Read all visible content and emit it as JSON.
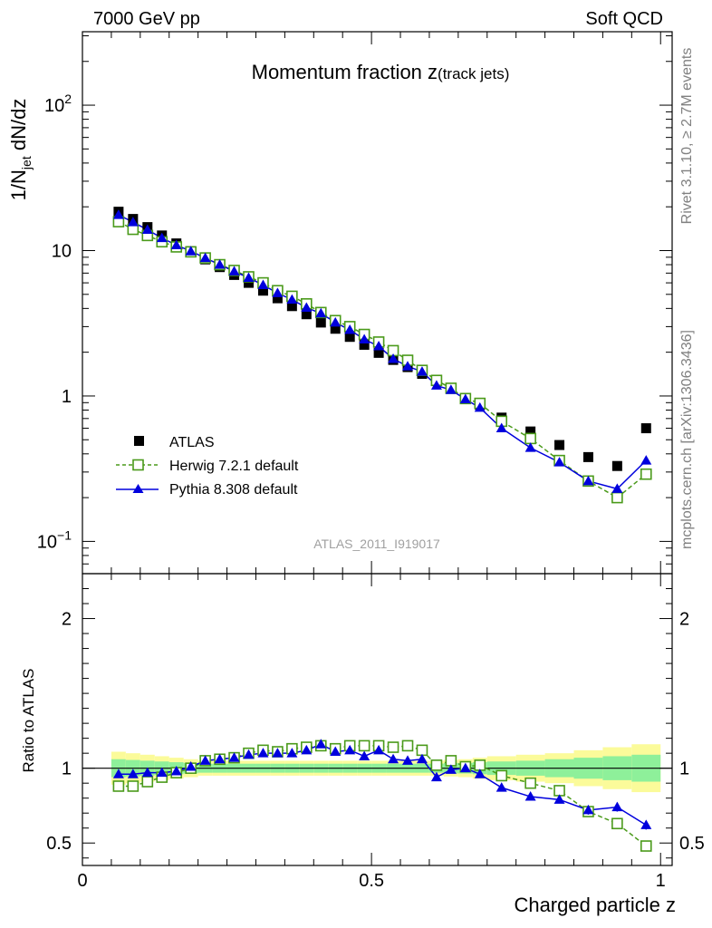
{
  "header": {
    "left": "7000 GeV pp",
    "right": "Soft QCD"
  },
  "side": {
    "upper": "Rivet 3.1.10, ≥ 2.7M events",
    "lower": "mcplots.cern.ch [arXiv:1306.3436]"
  },
  "chart_data": [
    {
      "type": "scatter",
      "panel": "main",
      "title": "Momentum fraction z",
      "title_sub": "(track jets)",
      "ylabel": {
        "prefix": "1/N",
        "sub": "jet",
        "suffix": " dN/dz"
      },
      "yscale": "log",
      "ylim": [
        0.06,
        320
      ],
      "xlim": [
        0,
        1.02
      ],
      "yticks": [
        {
          "value": 0.1,
          "base": "10",
          "exp": "−1"
        },
        {
          "value": 1,
          "label": "1"
        },
        {
          "value": 10,
          "label": "10"
        },
        {
          "value": 100,
          "base": "10",
          "exp": "2"
        }
      ],
      "watermark": "ATLAS_2011_I919017",
      "legend_position": "lower-left",
      "series": [
        {
          "name": "ATLAS",
          "color": "#000000",
          "marker": "square-filled",
          "x": [
            0.0625,
            0.0875,
            0.1125,
            0.1375,
            0.1625,
            0.1875,
            0.2125,
            0.2375,
            0.2625,
            0.2875,
            0.3125,
            0.3375,
            0.3625,
            0.3875,
            0.4125,
            0.4375,
            0.4625,
            0.4875,
            0.5125,
            0.5375,
            0.5625,
            0.5875,
            0.6125,
            0.6375,
            0.6625,
            0.6875,
            0.725,
            0.775,
            0.825,
            0.875,
            0.925,
            0.975
          ],
          "y": [
            18.5,
            16.5,
            14.5,
            12.7,
            11.2,
            9.9,
            8.7,
            7.7,
            6.8,
            6.0,
            5.3,
            4.7,
            4.15,
            3.65,
            3.2,
            2.9,
            2.55,
            2.25,
            1.98,
            1.77,
            1.58,
            1.42,
            1.27,
            1.12,
            0.96,
            0.87,
            0.71,
            0.57,
            0.46,
            0.38,
            0.33,
            0.6
          ]
        },
        {
          "name": "Herwig 7.2.1 default",
          "color": "#4a9a1a",
          "marker": "square-open",
          "line": "dashed",
          "x": [
            0.0625,
            0.0875,
            0.1125,
            0.1375,
            0.1625,
            0.1875,
            0.2125,
            0.2375,
            0.2625,
            0.2875,
            0.3125,
            0.3375,
            0.3625,
            0.3875,
            0.4125,
            0.4375,
            0.4625,
            0.4875,
            0.5125,
            0.5375,
            0.5625,
            0.5875,
            0.6125,
            0.6375,
            0.6625,
            0.6875,
            0.725,
            0.775,
            0.825,
            0.875,
            0.925,
            0.975
          ],
          "y": [
            15.8,
            14.0,
            12.7,
            11.5,
            10.6,
            9.8,
            8.9,
            8.0,
            7.3,
            6.6,
            6.0,
            5.3,
            4.85,
            4.3,
            3.75,
            3.3,
            3.0,
            2.65,
            2.35,
            2.05,
            1.76,
            1.5,
            1.28,
            1.13,
            0.96,
            0.89,
            0.67,
            0.51,
            0.36,
            0.26,
            0.2,
            0.29
          ]
        },
        {
          "name": "Pythia 8.308 default",
          "color": "#0000dd",
          "marker": "triangle-filled",
          "line": "solid",
          "x": [
            0.0625,
            0.0875,
            0.1125,
            0.1375,
            0.1625,
            0.1875,
            0.2125,
            0.2375,
            0.2625,
            0.2875,
            0.3125,
            0.3375,
            0.3625,
            0.3875,
            0.4125,
            0.4375,
            0.4625,
            0.4875,
            0.5125,
            0.5375,
            0.5625,
            0.5875,
            0.6125,
            0.6375,
            0.6625,
            0.6875,
            0.725,
            0.775,
            0.825,
            0.875,
            0.925,
            0.975
          ],
          "y": [
            17.6,
            15.7,
            13.9,
            12.2,
            10.9,
            9.9,
            8.9,
            8.0,
            7.2,
            6.5,
            5.8,
            5.1,
            4.6,
            4.05,
            3.7,
            3.2,
            2.85,
            2.45,
            2.2,
            1.8,
            1.6,
            1.47,
            1.18,
            1.1,
            0.95,
            0.83,
            0.6,
            0.44,
            0.35,
            0.26,
            0.23,
            0.36
          ]
        }
      ]
    },
    {
      "type": "line",
      "panel": "ratio",
      "ylabel": "Ratio to ATLAS",
      "xlabel": "Charged particle z",
      "ylim": [
        0.35,
        2.3
      ],
      "xlim": [
        0,
        1.02
      ],
      "yticks": [
        0.5,
        1,
        2
      ],
      "xticks": [
        {
          "value": 0,
          "label": "0"
        },
        {
          "value": 0.5,
          "label": "0.5"
        },
        {
          "value": 1,
          "label": "1"
        }
      ],
      "reference_line": 1,
      "band_colors": {
        "inner": "#8ef09a",
        "outer": "#fbfb9a"
      },
      "bands": {
        "edges": [
          0.05,
          0.075,
          0.1,
          0.125,
          0.15,
          0.175,
          0.2,
          0.225,
          0.25,
          0.275,
          0.3,
          0.325,
          0.35,
          0.375,
          0.4,
          0.425,
          0.45,
          0.475,
          0.5,
          0.525,
          0.55,
          0.575,
          0.6,
          0.625,
          0.65,
          0.675,
          0.7,
          0.75,
          0.8,
          0.85,
          0.9,
          0.95,
          1.0
        ],
        "inner": [
          0.06,
          0.055,
          0.05,
          0.045,
          0.04,
          0.035,
          0.03,
          0.03,
          0.03,
          0.03,
          0.03,
          0.03,
          0.03,
          0.03,
          0.03,
          0.03,
          0.03,
          0.03,
          0.03,
          0.03,
          0.03,
          0.03,
          0.03,
          0.035,
          0.035,
          0.04,
          0.045,
          0.05,
          0.06,
          0.07,
          0.08,
          0.09
        ],
        "outer": [
          0.11,
          0.1,
          0.09,
          0.08,
          0.07,
          0.06,
          0.05,
          0.05,
          0.05,
          0.05,
          0.05,
          0.05,
          0.05,
          0.05,
          0.05,
          0.05,
          0.05,
          0.05,
          0.05,
          0.05,
          0.05,
          0.05,
          0.05,
          0.055,
          0.06,
          0.07,
          0.08,
          0.09,
          0.1,
          0.12,
          0.14,
          0.16
        ]
      },
      "series": [
        {
          "name": "Herwig 7.2.1 default",
          "color": "#4a9a1a",
          "marker": "square-open",
          "line": "dashed",
          "x": [
            0.0625,
            0.0875,
            0.1125,
            0.1375,
            0.1625,
            0.1875,
            0.2125,
            0.2375,
            0.2625,
            0.2875,
            0.3125,
            0.3375,
            0.3625,
            0.3875,
            0.4125,
            0.4375,
            0.4625,
            0.4875,
            0.5125,
            0.5375,
            0.5625,
            0.5875,
            0.6125,
            0.6375,
            0.6625,
            0.6875,
            0.725,
            0.775,
            0.825,
            0.875,
            0.925,
            0.975
          ],
          "y": [
            0.88,
            0.88,
            0.91,
            0.94,
            0.97,
            1.0,
            1.05,
            1.06,
            1.07,
            1.1,
            1.12,
            1.11,
            1.13,
            1.14,
            1.15,
            1.13,
            1.15,
            1.15,
            1.15,
            1.14,
            1.15,
            1.12,
            1.02,
            1.05,
            1.01,
            1.02,
            0.95,
            0.9,
            0.85,
            0.71,
            0.63,
            0.48
          ],
          "err": [
            0,
            0,
            0,
            0,
            0,
            0,
            0,
            0,
            0,
            0,
            0,
            0,
            0,
            0,
            0,
            0,
            0,
            0,
            0,
            0,
            0,
            0,
            0,
            0,
            0,
            0,
            0.01,
            0.015,
            0.02,
            0.03,
            0.03,
            0.03
          ]
        },
        {
          "name": "Pythia 8.308 default",
          "color": "#0000dd",
          "marker": "triangle-filled",
          "line": "solid",
          "x": [
            0.0625,
            0.0875,
            0.1125,
            0.1375,
            0.1625,
            0.1875,
            0.2125,
            0.2375,
            0.2625,
            0.2875,
            0.3125,
            0.3375,
            0.3625,
            0.3875,
            0.4125,
            0.4375,
            0.4625,
            0.4875,
            0.5125,
            0.5375,
            0.5625,
            0.5875,
            0.6125,
            0.6375,
            0.6625,
            0.6875,
            0.725,
            0.775,
            0.825,
            0.875,
            0.925,
            0.975
          ],
          "y": [
            0.96,
            0.96,
            0.97,
            0.97,
            0.98,
            1.01,
            1.05,
            1.06,
            1.07,
            1.09,
            1.1,
            1.1,
            1.1,
            1.12,
            1.16,
            1.11,
            1.12,
            1.08,
            1.12,
            1.06,
            1.05,
            1.06,
            0.94,
            0.99,
            1.0,
            0.96,
            0.87,
            0.81,
            0.79,
            0.72,
            0.74,
            0.62
          ],
          "err": [
            0,
            0,
            0,
            0,
            0,
            0,
            0,
            0,
            0,
            0,
            0,
            0,
            0,
            0,
            0,
            0,
            0,
            0,
            0.015,
            0,
            0,
            0,
            0.015,
            0.015,
            0.015,
            0.015,
            0.015,
            0.02,
            0.02,
            0.03,
            0.03,
            0.03
          ]
        }
      ]
    }
  ]
}
